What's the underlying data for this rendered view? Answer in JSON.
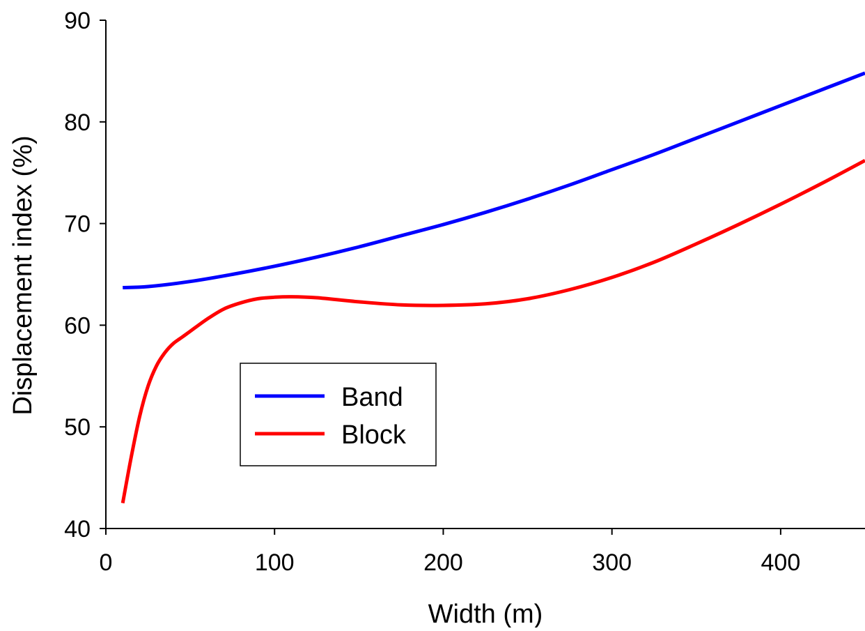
{
  "chart_data": {
    "type": "line",
    "title": "",
    "xlabel": "Width (m)",
    "ylabel": "Displacement index (%)",
    "xlim": [
      0,
      450
    ],
    "ylim": [
      40,
      90
    ],
    "xticks": [
      0,
      100,
      200,
      300,
      400
    ],
    "yticks": [
      40,
      50,
      60,
      70,
      80,
      90
    ],
    "grid": false,
    "legend_position": "center-left",
    "series": [
      {
        "name": "Band",
        "color": "#0000ff",
        "x": [
          10,
          25,
          50,
          75,
          100,
          125,
          150,
          175,
          200,
          225,
          250,
          275,
          300,
          325,
          350,
          375,
          400,
          425,
          450
        ],
        "y": [
          63.7,
          63.8,
          64.3,
          65.0,
          65.8,
          66.7,
          67.7,
          68.8,
          69.9,
          71.1,
          72.4,
          73.8,
          75.3,
          76.8,
          78.4,
          80.0,
          81.6,
          83.2,
          84.8
        ]
      },
      {
        "name": "Block",
        "color": "#ff0000",
        "x": [
          10,
          15,
          20,
          25,
          30,
          35,
          40,
          45,
          50,
          60,
          70,
          80,
          90,
          100,
          110,
          125,
          150,
          175,
          200,
          225,
          250,
          275,
          300,
          325,
          350,
          375,
          400,
          425,
          450
        ],
        "y": [
          42.5,
          47.0,
          51.0,
          54.0,
          56.0,
          57.3,
          58.2,
          58.8,
          59.4,
          60.6,
          61.6,
          62.2,
          62.6,
          62.75,
          62.8,
          62.7,
          62.3,
          62.0,
          61.95,
          62.1,
          62.6,
          63.5,
          64.7,
          66.2,
          68.0,
          69.9,
          71.9,
          74.0,
          76.2
        ]
      }
    ]
  }
}
